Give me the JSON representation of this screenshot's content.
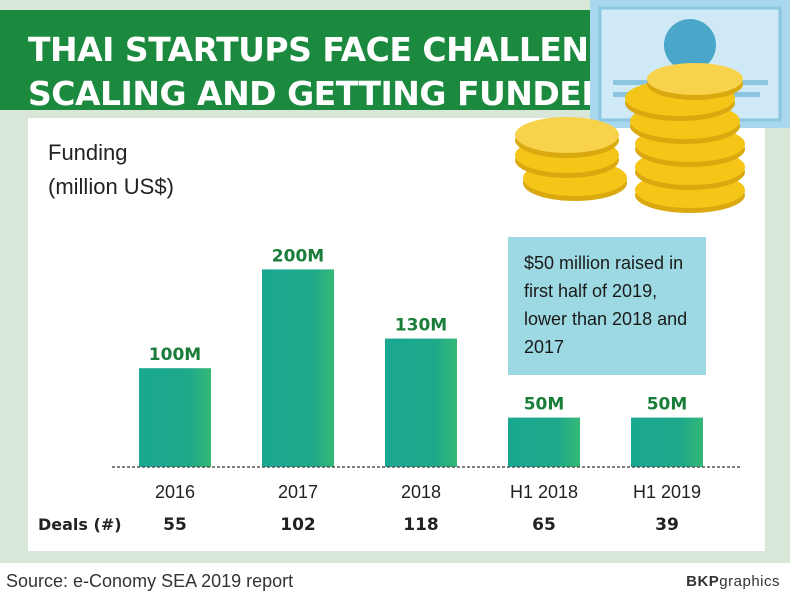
{
  "title": {
    "line1": "THAI STARTUPS FACE CHALLENGES",
    "line2": "SCALING AND GETTING FUNDED"
  },
  "ylabel": {
    "line1": "Funding",
    "line2": "(million US$)"
  },
  "callout": "$50 million raised in first half of 2019, lower than 2018 and 2017",
  "deals_label": "Deals (#)",
  "source": "Source: e-Conomy SEA 2019 report",
  "credit": {
    "brand": "BKP",
    "rest": "graphics"
  },
  "colors": {
    "banner": "#1b8a3e",
    "bar": "#1aa791",
    "bar_edge": "#2db57a",
    "background": "#d9e7d9",
    "callout": "#9dd9e3",
    "coin": "#f5c518"
  },
  "chart_data": {
    "type": "bar",
    "categories": [
      "2016",
      "2017",
      "2018",
      "H1 2018",
      "H1 2019"
    ],
    "values": [
      100,
      200,
      130,
      50,
      50
    ],
    "data_labels": [
      "100M",
      "200M",
      "130M",
      "50M",
      "50M"
    ],
    "deals": [
      55,
      102,
      118,
      65,
      39
    ],
    "ylabel": "Funding (million US$)",
    "ylim": [
      0,
      250
    ],
    "grid": false
  }
}
